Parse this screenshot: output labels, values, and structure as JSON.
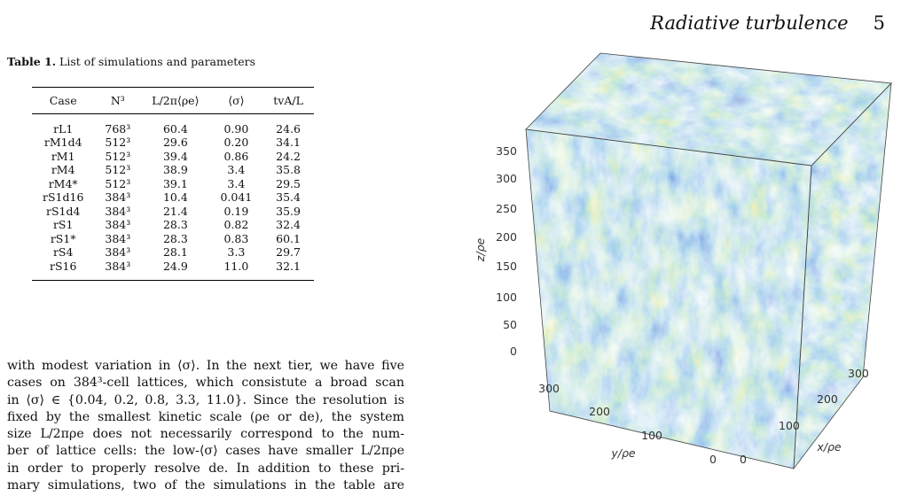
{
  "header": {
    "title": "Radiative turbulence",
    "page": "5"
  },
  "table": {
    "caption_label": "Table 1.",
    "caption_text": "List of simulations and parameters",
    "columns": [
      "Case",
      "N³",
      "L/2π⟨ρe⟩",
      "⟨σ⟩",
      "tvA/L"
    ],
    "rows": [
      [
        "rL1",
        "768³",
        "60.4",
        "0.90",
        "24.6"
      ],
      [
        "rM1d4",
        "512³",
        "29.6",
        "0.20",
        "34.1"
      ],
      [
        "rM1",
        "512³",
        "39.4",
        "0.86",
        "24.2"
      ],
      [
        "rM4",
        "512³",
        "38.9",
        "3.4",
        "35.8"
      ],
      [
        "rM4*",
        "512³",
        "39.1",
        "3.4",
        "29.5"
      ],
      [
        "rS1d16",
        "384³",
        "10.4",
        "0.041",
        "35.4"
      ],
      [
        "rS1d4",
        "384³",
        "21.4",
        "0.19",
        "35.9"
      ],
      [
        "rS1",
        "384³",
        "28.3",
        "0.82",
        "32.4"
      ],
      [
        "rS1*",
        "384³",
        "28.3",
        "0.83",
        "60.1"
      ],
      [
        "rS4",
        "384³",
        "28.1",
        "3.3",
        "29.7"
      ],
      [
        "rS16",
        "384³",
        "24.9",
        "11.0",
        "32.1"
      ]
    ]
  },
  "body_lines": [
    "with modest variation in ⟨σ⟩. In the next tier, we have five",
    "cases on 384³-cell lattices, which consistute a broad scan",
    "in ⟨σ⟩ ∈ {0.04, 0.2, 0.8, 3.3, 11.0}. Since the resolution is",
    "fixed by the smallest kinetic scale (ρe or de), the system",
    "size L/2πρe does not necessarily correspond to the num-",
    "ber of lattice cells: the low-⟨σ⟩ cases have smaller L/2πρe",
    "in order to properly resolve de. In addition to these pri-",
    "mary simulations, two of the simulations in the table are"
  ],
  "figure": {
    "z_label": "z/ρe",
    "y_label": "y/ρe",
    "x_label": "x/ρe",
    "z_ticks": [
      "0",
      "50",
      "100",
      "150",
      "200",
      "250",
      "300",
      "350"
    ],
    "y_ticks": [
      "300",
      "200",
      "100",
      "0"
    ],
    "x_ticks": [
      "0",
      "100",
      "200",
      "300"
    ],
    "colors": {
      "low": "#20308a",
      "mid": "#4a8fd0",
      "green": "#7fc08a",
      "high": "#f2d13a"
    }
  }
}
